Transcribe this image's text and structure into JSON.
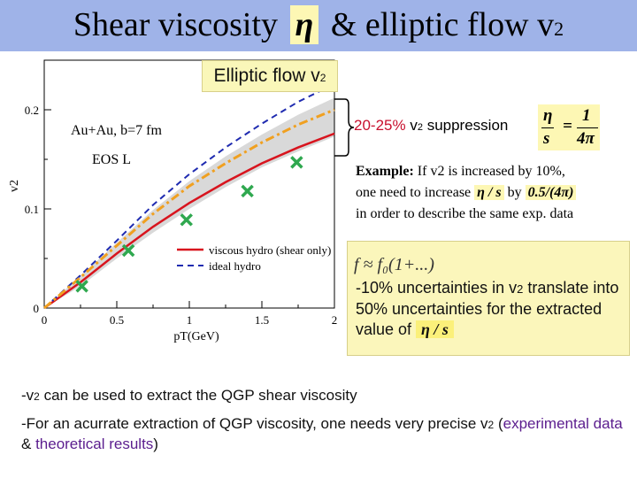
{
  "title": {
    "pre": "Shear viscosity",
    "eta": "η",
    "mid": "& elliptic flow v",
    "sub": "2"
  },
  "elliptic_label": {
    "text": "Elliptic flow v",
    "sub": "2"
  },
  "suppression": {
    "percent": "20-25%",
    "v": "v",
    "sub": "2",
    "rest": " suppression"
  },
  "kss_formula": {
    "num_left": "η",
    "den_left": "s",
    "eq": "=",
    "num_right": "1",
    "den_right": "4π"
  },
  "example": {
    "label": "Example:",
    "line1": " If v2 is increased by 10%,",
    "line2a": "one need to increase ",
    "eta_s": "η / s",
    "line2b": " by ",
    "amount": "0.5/(4π)",
    "line3": "in order to describe the same exp. data"
  },
  "note": {
    "formula": "f ≈ f₀(1+...)",
    "pre": "-10%",
    "mid1": " uncertainties in v",
    "sub": "2",
    "mid2": " translate into ",
    "pct": "50%",
    "mid3": " uncertainties for the extracted value of ",
    "eta_s": "η / s"
  },
  "bullets": {
    "b1_pre": "-v",
    "b1_sub": "2",
    "b1_rest": " can be used to extract the QGP shear viscosity",
    "b2_pre": "-For an acurrate extraction of QGP viscosity, one needs very precise v",
    "b2_sub": "2",
    "b2_paren_open": " (",
    "b2_exp": "experimental data",
    "b2_amp": " & ",
    "b2_theo": "theoretical results",
    "b2_paren_close": ")"
  },
  "colors": {
    "title_bg": "#9fb3e8",
    "highlight": "#fdf7b4",
    "viscous": "#d8141e",
    "ideal": "#1f2bb0",
    "orange": "#f0a020",
    "band": "#d9d9d9",
    "marker": "#2fa84f"
  },
  "chart_data": {
    "type": "line",
    "xlabel": "pT(GeV)",
    "ylabel": "v2",
    "xlim": [
      0,
      2
    ],
    "ylim": [
      0,
      0.25
    ],
    "xticks": [
      "0",
      "0.5",
      "1",
      "1.5",
      "2"
    ],
    "yticks": [
      "0",
      "0.1",
      "0.2"
    ],
    "annotations": [
      "Au+Au, b=7 fm",
      "EOS L"
    ],
    "legend_position": "bottom-right",
    "series": [
      {
        "name": "viscous hydro (shear only)",
        "style": "solid",
        "x": [
          0,
          0.25,
          0.5,
          0.75,
          1.0,
          1.25,
          1.5,
          1.75,
          2.0
        ],
        "y": [
          0,
          0.026,
          0.055,
          0.082,
          0.106,
          0.127,
          0.146,
          0.162,
          0.176
        ]
      },
      {
        "name": "ideal hydro",
        "style": "dashed",
        "x": [
          0,
          0.25,
          0.5,
          0.75,
          1.0,
          1.25,
          1.5,
          1.75,
          2.0
        ],
        "y": [
          0,
          0.033,
          0.068,
          0.104,
          0.135,
          0.162,
          0.186,
          0.208,
          0.226
        ]
      },
      {
        "style": "dash-dot",
        "x": [
          0,
          0.25,
          0.5,
          0.75,
          1.0,
          1.25,
          1.5,
          1.75,
          2.0
        ],
        "y": [
          0,
          0.031,
          0.063,
          0.095,
          0.123,
          0.146,
          0.167,
          0.185,
          0.2
        ]
      }
    ],
    "band": {
      "x": [
        0,
        0.25,
        0.5,
        0.75,
        1.0,
        1.25,
        1.5,
        1.75,
        2.0
      ],
      "low": [
        0,
        0.022,
        0.05,
        0.076,
        0.1,
        0.122,
        0.142,
        0.158,
        0.173
      ],
      "high": [
        0,
        0.032,
        0.066,
        0.099,
        0.128,
        0.153,
        0.175,
        0.195,
        0.212
      ]
    },
    "markers": {
      "x": [
        0.26,
        0.58,
        0.98,
        1.4,
        1.74
      ],
      "y": [
        0.022,
        0.058,
        0.089,
        0.118,
        0.147
      ]
    }
  }
}
